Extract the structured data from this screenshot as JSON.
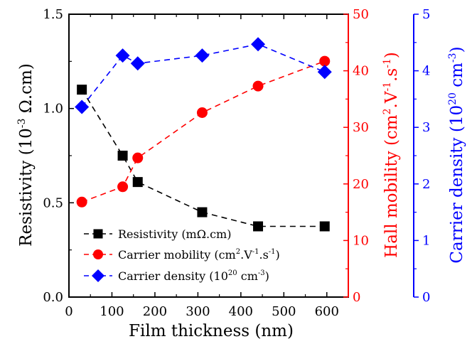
{
  "chart_data": {
    "type": "line",
    "xlabel": "Film thickness (nm)",
    "xlim": [
      0,
      650
    ],
    "x_ticks": [
      "0",
      "100",
      "200",
      "300",
      "400",
      "500",
      "600"
    ],
    "y_axes": [
      {
        "key": "left",
        "label_main": "Resistivity (10",
        "label_sup": "-3",
        "label_tail": " Ω.cm)",
        "ylim": [
          0,
          1.5
        ],
        "ticks": [
          "0.0",
          "0.5",
          "1.0",
          "1.5"
        ],
        "color": "#000000"
      },
      {
        "key": "right1",
        "label_main": "Hall mobility (cm",
        "label_sup": "2",
        "label_mid": ".V",
        "label_sup2": "-1",
        "label_mid2": ".s",
        "label_sup3": "-1",
        "label_tail": ")",
        "ylim": [
          0,
          50
        ],
        "ticks": [
          "0",
          "10",
          "20",
          "30",
          "40",
          "50"
        ],
        "color": "#ff0000"
      },
      {
        "key": "right2",
        "label_main": "Carrier density (10",
        "label_sup": "20",
        "label_mid": " cm",
        "label_sup2": "-3",
        "label_tail": ")",
        "ylim": [
          0,
          5
        ],
        "ticks": [
          "0",
          "1",
          "2",
          "3",
          "4",
          "5"
        ],
        "color": "#0000ff"
      }
    ],
    "series": [
      {
        "name": "Resistivity (mΩ.cm)",
        "legend_main": "Resistivity (mΩ.cm)",
        "axis": "left",
        "marker": "square",
        "color": "#000000",
        "x": [
          30,
          125,
          160,
          310,
          440,
          595
        ],
        "y": [
          1.1,
          0.75,
          0.61,
          0.45,
          0.375,
          0.375
        ]
      },
      {
        "name": "Carrier mobility (cm2.V-1.s-1)",
        "legend_main": "Carrier mobility (cm",
        "legend_sup": "2",
        "legend_mid": ".V",
        "legend_sup2": "-1",
        "legend_mid2": ".s",
        "legend_sup3": "-1",
        "legend_tail": ")",
        "axis": "right1",
        "marker": "circle",
        "color": "#ff0000",
        "x": [
          30,
          125,
          160,
          310,
          440,
          595
        ],
        "y": [
          16.8,
          19.5,
          24.6,
          32.6,
          37.3,
          41.7
        ]
      },
      {
        "name": "Carrier density (1020 cm-3)",
        "legend_main": "Carrier density (10",
        "legend_sup": "20",
        "legend_mid": " cm",
        "legend_sup2": "-3",
        "legend_tail": ")",
        "axis": "right2",
        "marker": "diamond",
        "color": "#0000ff",
        "x": [
          30,
          125,
          160,
          310,
          440,
          595
        ],
        "y": [
          3.36,
          4.27,
          4.13,
          4.27,
          4.47,
          3.98
        ]
      }
    ],
    "legend_position": "bottom-left",
    "grid": false
  }
}
